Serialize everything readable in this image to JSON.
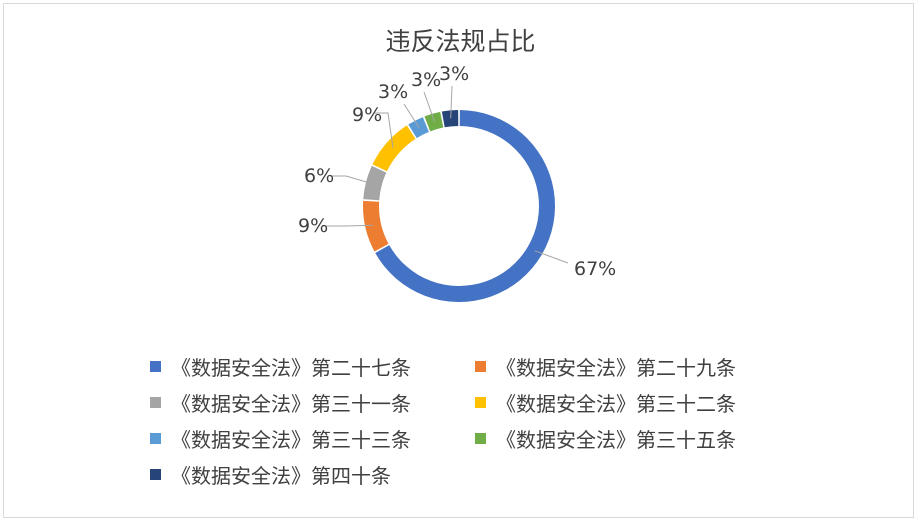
{
  "chart_data": {
    "type": "pie",
    "title": "违反法规占比",
    "donut": true,
    "legend_position": "bottom",
    "slices": [
      {
        "label": "《数据安全法》第二十七条",
        "value": 67,
        "display": "67%",
        "color": "#4472C4"
      },
      {
        "label": "《数据安全法》第二十九条",
        "value": 9,
        "display": "9%",
        "color": "#ED7D31"
      },
      {
        "label": "《数据安全法》第三十一条",
        "value": 6,
        "display": "6%",
        "color": "#A5A5A5"
      },
      {
        "label": "《数据安全法》第三十二条",
        "value": 9,
        "display": "9%",
        "color": "#FFC000"
      },
      {
        "label": "《数据安全法》第三十三条",
        "value": 3,
        "display": "3%",
        "color": "#5B9BD5"
      },
      {
        "label": "《数据安全法》第三十五条",
        "value": 3,
        "display": "3%",
        "color": "#70AD47"
      },
      {
        "label": "《数据安全法》第四十条",
        "value": 3,
        "display": "3%",
        "color": "#264478"
      }
    ]
  }
}
